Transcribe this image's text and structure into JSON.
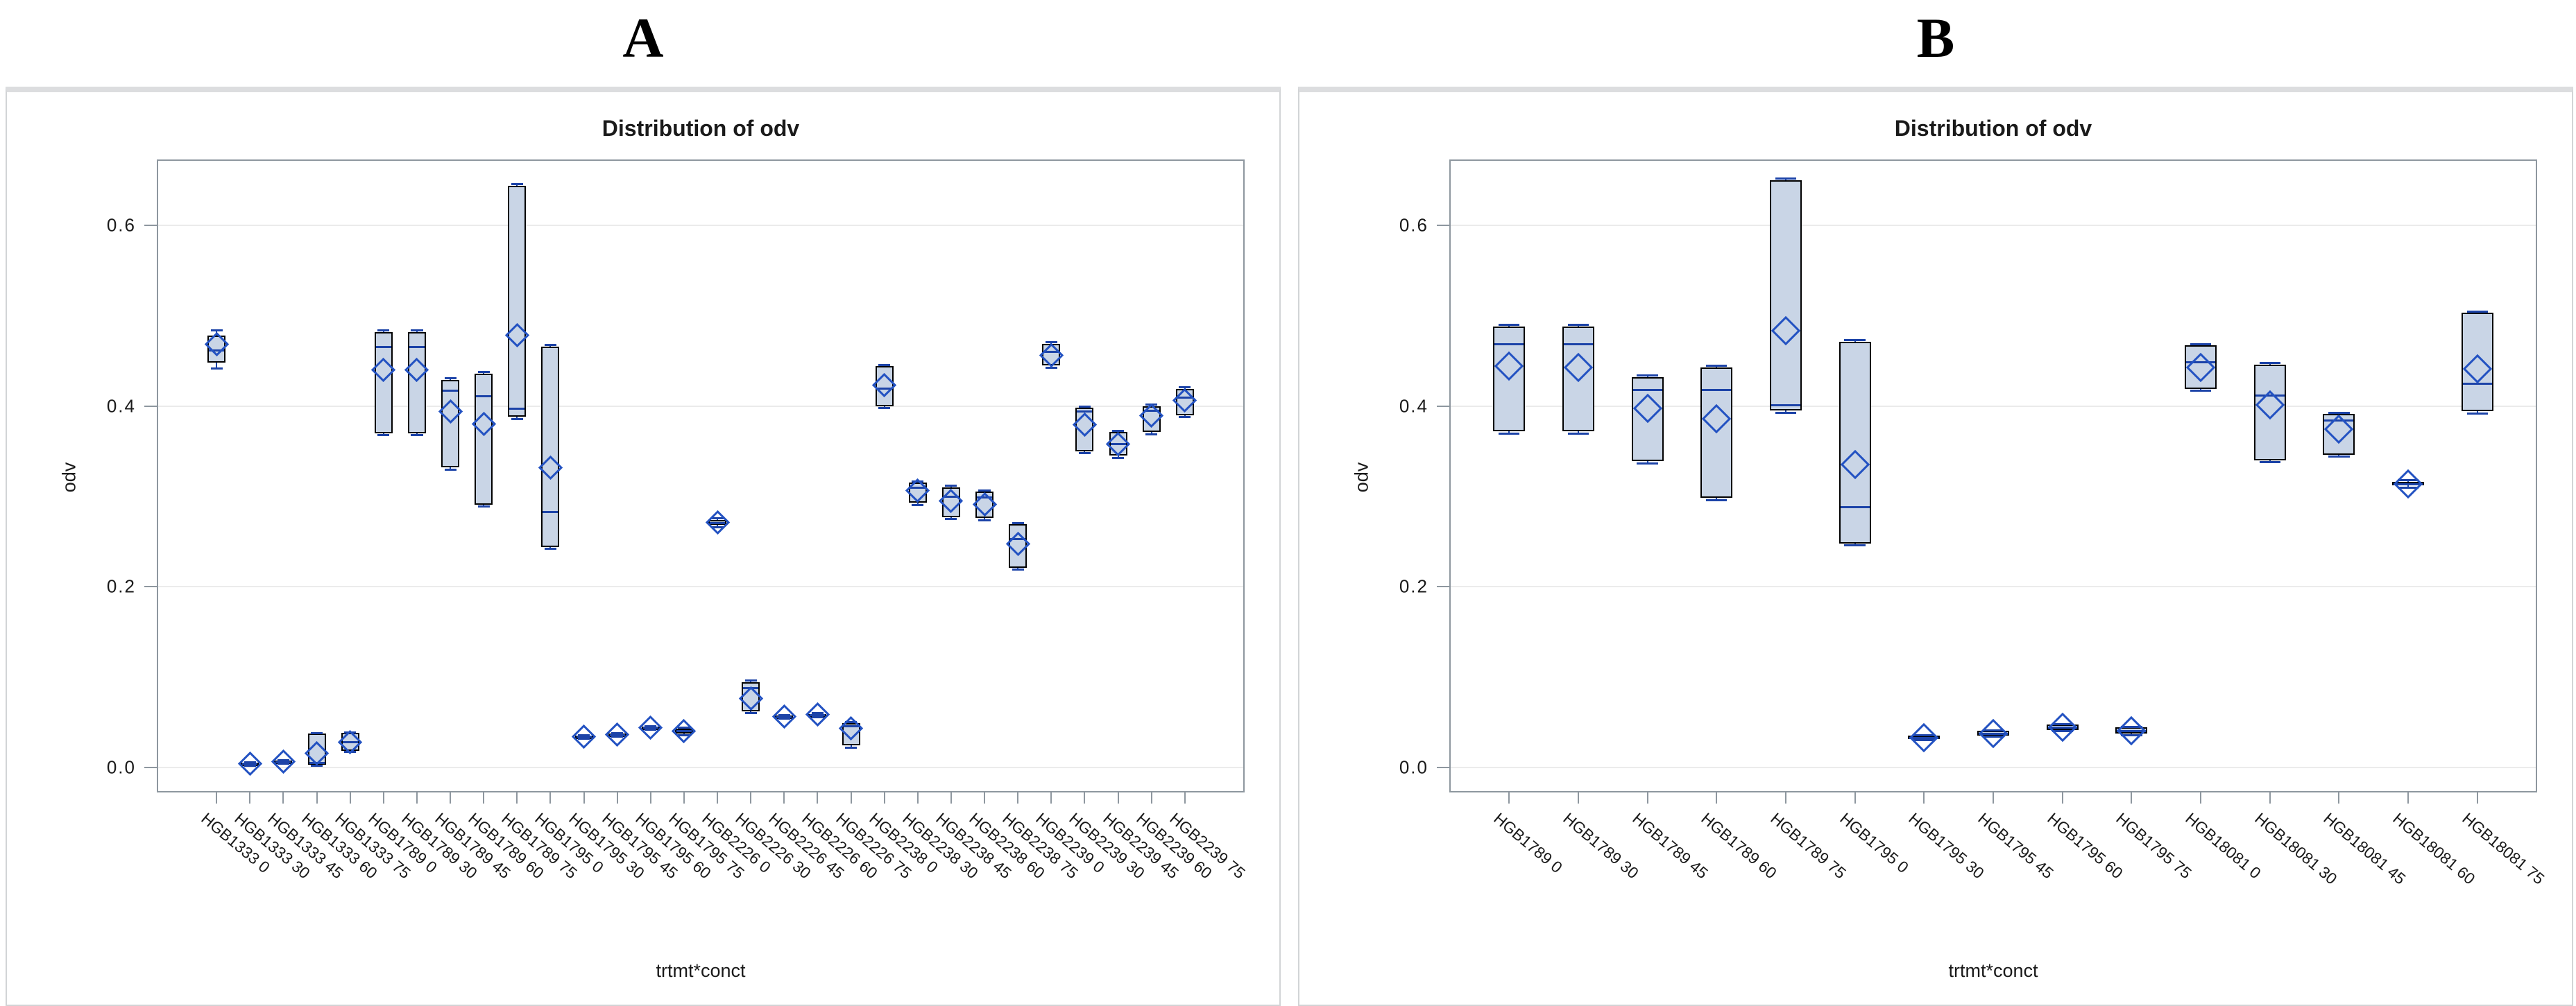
{
  "chart_data": {
    "type": "box",
    "title": "Distribution of odv",
    "xlabel": "trtmt*conct",
    "ylabel": "odv",
    "ytick_labels": [
      "0.0",
      "0.2",
      "0.4",
      "0.6"
    ],
    "yticks": [
      0.0,
      0.2,
      0.4,
      0.6
    ],
    "ylim": [
      -0.028,
      0.673
    ],
    "grid": "horizontal",
    "legend_position": "none",
    "colors": {
      "box_fill": "#c9d5e6",
      "box_border": "#000000",
      "median_line": "#1c43a8",
      "whisker": "#1c43a8",
      "mean_marker_border": "#2352c2",
      "gridline": "#ebebeb",
      "frame_border": "#8e979f",
      "panel_border": "#d2d4d6",
      "text": "#1a1a1a"
    },
    "panels": [
      {
        "panel_label": "A",
        "title": "Distribution of odv",
        "xlabel": "trtmt*conct",
        "ylabel": "odv",
        "boxes": [
          {
            "label": "HGB1333 0",
            "low": 0.442,
            "q1": 0.448,
            "median": 0.462,
            "q3": 0.478,
            "high": 0.484,
            "mean": 0.468
          },
          {
            "label": "HGB1333 30",
            "low": 0.002,
            "q1": 0.003,
            "median": 0.004,
            "q3": 0.005,
            "high": 0.006,
            "mean": 0.004
          },
          {
            "label": "HGB1333 45",
            "low": 0.004,
            "q1": 0.005,
            "median": 0.006,
            "q3": 0.007,
            "high": 0.008,
            "mean": 0.006
          },
          {
            "label": "HGB1333 60",
            "low": 0.002,
            "q1": 0.003,
            "median": 0.005,
            "q3": 0.037,
            "high": 0.038,
            "mean": 0.015
          },
          {
            "label": "HGB1333 75",
            "low": 0.017,
            "q1": 0.018,
            "median": 0.028,
            "q3": 0.038,
            "high": 0.039,
            "mean": 0.028
          },
          {
            "label": "HGB1789 0",
            "low": 0.368,
            "q1": 0.37,
            "median": 0.466,
            "q3": 0.482,
            "high": 0.484,
            "mean": 0.44
          },
          {
            "label": "HGB1789 30",
            "low": 0.368,
            "q1": 0.37,
            "median": 0.466,
            "q3": 0.482,
            "high": 0.484,
            "mean": 0.44
          },
          {
            "label": "HGB1789 45",
            "low": 0.33,
            "q1": 0.332,
            "median": 0.417,
            "q3": 0.429,
            "high": 0.431,
            "mean": 0.394
          },
          {
            "label": "HGB1789 60",
            "low": 0.289,
            "q1": 0.291,
            "median": 0.411,
            "q3": 0.436,
            "high": 0.438,
            "mean": 0.38
          },
          {
            "label": "HGB1789 75",
            "low": 0.386,
            "q1": 0.388,
            "median": 0.397,
            "q3": 0.644,
            "high": 0.646,
            "mean": 0.478
          },
          {
            "label": "HGB1795 0",
            "low": 0.242,
            "q1": 0.244,
            "median": 0.283,
            "q3": 0.466,
            "high": 0.468,
            "mean": 0.332
          },
          {
            "label": "HGB1795 30",
            "low": 0.032,
            "q1": 0.033,
            "median": 0.034,
            "q3": 0.035,
            "high": 0.036,
            "mean": 0.034
          },
          {
            "label": "HGB1795 45",
            "low": 0.034,
            "q1": 0.035,
            "median": 0.036,
            "q3": 0.037,
            "high": 0.038,
            "mean": 0.036
          },
          {
            "label": "HGB1795 60",
            "low": 0.042,
            "q1": 0.043,
            "median": 0.044,
            "q3": 0.045,
            "high": 0.046,
            "mean": 0.044
          },
          {
            "label": "HGB1795 75",
            "low": 0.036,
            "q1": 0.037,
            "median": 0.04,
            "q3": 0.043,
            "high": 0.044,
            "mean": 0.04
          },
          {
            "label": "HGB2226 0",
            "low": 0.266,
            "q1": 0.268,
            "median": 0.271,
            "q3": 0.274,
            "high": 0.276,
            "mean": 0.271
          },
          {
            "label": "HGB2226 30",
            "low": 0.06,
            "q1": 0.062,
            "median": 0.088,
            "q3": 0.094,
            "high": 0.096,
            "mean": 0.076
          },
          {
            "label": "HGB2226 45",
            "low": 0.054,
            "q1": 0.055,
            "median": 0.056,
            "q3": 0.057,
            "high": 0.058,
            "mean": 0.056
          },
          {
            "label": "HGB2226 60",
            "low": 0.056,
            "q1": 0.057,
            "median": 0.058,
            "q3": 0.059,
            "high": 0.06,
            "mean": 0.058
          },
          {
            "label": "HGB2226 75",
            "low": 0.022,
            "q1": 0.024,
            "median": 0.046,
            "q3": 0.049,
            "high": 0.05,
            "mean": 0.043
          },
          {
            "label": "HGB2238 0",
            "low": 0.398,
            "q1": 0.4,
            "median": 0.42,
            "q3": 0.444,
            "high": 0.446,
            "mean": 0.423
          },
          {
            "label": "HGB2238 30",
            "low": 0.291,
            "q1": 0.293,
            "median": 0.31,
            "q3": 0.315,
            "high": 0.317,
            "mean": 0.306
          },
          {
            "label": "HGB2238 45",
            "low": 0.275,
            "q1": 0.277,
            "median": 0.3,
            "q3": 0.31,
            "high": 0.312,
            "mean": 0.295
          },
          {
            "label": "HGB2238 60",
            "low": 0.274,
            "q1": 0.276,
            "median": 0.299,
            "q3": 0.305,
            "high": 0.307,
            "mean": 0.291
          },
          {
            "label": "HGB2238 75",
            "low": 0.219,
            "q1": 0.221,
            "median": 0.253,
            "q3": 0.269,
            "high": 0.271,
            "mean": 0.247
          },
          {
            "label": "HGB2239 0",
            "low": 0.443,
            "q1": 0.445,
            "median": 0.46,
            "q3": 0.469,
            "high": 0.471,
            "mean": 0.456
          },
          {
            "label": "HGB2239 30",
            "low": 0.348,
            "q1": 0.35,
            "median": 0.394,
            "q3": 0.398,
            "high": 0.4,
            "mean": 0.379
          },
          {
            "label": "HGB2239 45",
            "low": 0.343,
            "q1": 0.345,
            "median": 0.358,
            "q3": 0.371,
            "high": 0.373,
            "mean": 0.358
          },
          {
            "label": "HGB2239 60",
            "low": 0.369,
            "q1": 0.371,
            "median": 0.395,
            "q3": 0.4,
            "high": 0.402,
            "mean": 0.389
          },
          {
            "label": "HGB2239 75",
            "low": 0.388,
            "q1": 0.39,
            "median": 0.41,
            "q3": 0.419,
            "high": 0.421,
            "mean": 0.406
          }
        ]
      },
      {
        "panel_label": "B",
        "title": "Distribution of odv",
        "xlabel": "trtmt*conct",
        "ylabel": "odv",
        "boxes": [
          {
            "label": "HGB1789 0",
            "low": 0.37,
            "q1": 0.372,
            "median": 0.469,
            "q3": 0.488,
            "high": 0.49,
            "mean": 0.444
          },
          {
            "label": "HGB1789 30",
            "low": 0.37,
            "q1": 0.372,
            "median": 0.469,
            "q3": 0.488,
            "high": 0.49,
            "mean": 0.443
          },
          {
            "label": "HGB1789 45",
            "low": 0.337,
            "q1": 0.339,
            "median": 0.418,
            "q3": 0.432,
            "high": 0.434,
            "mean": 0.397
          },
          {
            "label": "HGB1789 60",
            "low": 0.296,
            "q1": 0.298,
            "median": 0.418,
            "q3": 0.443,
            "high": 0.445,
            "mean": 0.386
          },
          {
            "label": "HGB1789 75",
            "low": 0.393,
            "q1": 0.395,
            "median": 0.401,
            "q3": 0.65,
            "high": 0.652,
            "mean": 0.483
          },
          {
            "label": "HGB1795 0",
            "low": 0.246,
            "q1": 0.248,
            "median": 0.288,
            "q3": 0.471,
            "high": 0.473,
            "mean": 0.335
          },
          {
            "label": "HGB1795 30",
            "low": 0.03,
            "q1": 0.031,
            "median": 0.033,
            "q3": 0.035,
            "high": 0.036,
            "mean": 0.033
          },
          {
            "label": "HGB1795 45",
            "low": 0.034,
            "q1": 0.035,
            "median": 0.037,
            "q3": 0.04,
            "high": 0.041,
            "mean": 0.037
          },
          {
            "label": "HGB1795 60",
            "low": 0.04,
            "q1": 0.041,
            "median": 0.044,
            "q3": 0.047,
            "high": 0.048,
            "mean": 0.044
          },
          {
            "label": "HGB1795 75",
            "low": 0.036,
            "q1": 0.037,
            "median": 0.04,
            "q3": 0.044,
            "high": 0.045,
            "mean": 0.04
          },
          {
            "label": "HGB18081 0",
            "low": 0.417,
            "q1": 0.419,
            "median": 0.449,
            "q3": 0.467,
            "high": 0.469,
            "mean": 0.443
          },
          {
            "label": "HGB18081 30",
            "low": 0.338,
            "q1": 0.34,
            "median": 0.412,
            "q3": 0.446,
            "high": 0.448,
            "mean": 0.401
          },
          {
            "label": "HGB18081 45",
            "low": 0.344,
            "q1": 0.346,
            "median": 0.384,
            "q3": 0.391,
            "high": 0.393,
            "mean": 0.374
          },
          {
            "label": "HGB18081 60",
            "low": 0.31,
            "q1": 0.312,
            "median": 0.314,
            "q3": 0.316,
            "high": 0.318,
            "mean": 0.314
          },
          {
            "label": "HGB18081 75",
            "low": 0.392,
            "q1": 0.394,
            "median": 0.425,
            "q3": 0.503,
            "high": 0.505,
            "mean": 0.441
          }
        ]
      }
    ]
  }
}
